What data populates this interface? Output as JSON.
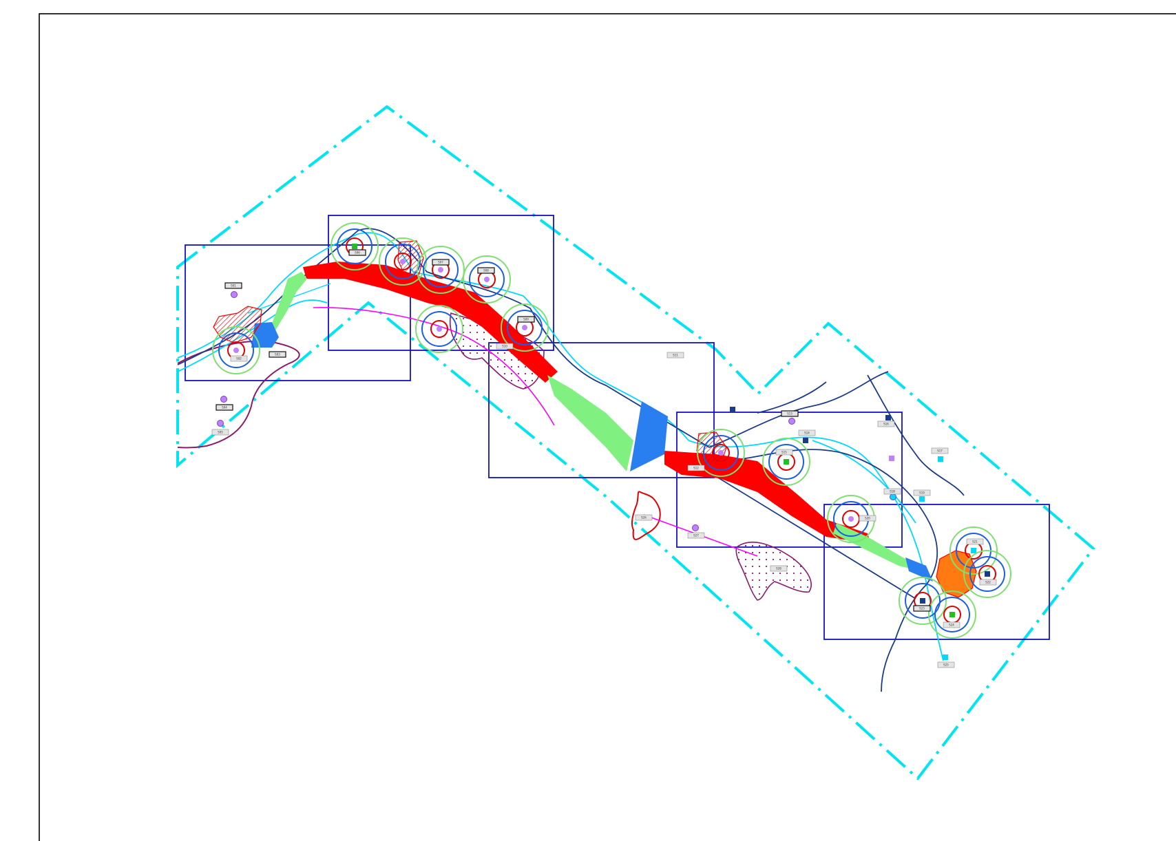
{
  "sheet": {
    "name": "map-sheet",
    "colors": {
      "background": "#ffffff",
      "border": "#000000",
      "boundary": "#00e5f0",
      "frames": "#1010c8",
      "high_hazard": "#ff0000",
      "medium_hazard": "#80f080",
      "low_hazard": "#2a7ff0",
      "ring_inner": "#e00000",
      "ring_middle": "#1a5fe0",
      "ring_outer": "#7ee070",
      "river": "#00d8ff",
      "road": "#1a3a8a",
      "pipeline": "#ff00ff",
      "flood_zone": "#8a1a6a",
      "node_fill": "#c080ff",
      "orange_zone": "#ff7a10"
    },
    "legend_items": [],
    "frames_count": 5,
    "boundary_style": "dash-dot"
  },
  "labels": {
    "small": [
      "NAM_01",
      "NAM_02",
      "NAM_03",
      "NAM_04",
      "NAM_05",
      "NAM_06",
      "NAM_07",
      "NAM_08",
      "NAM_09",
      "NAM_10",
      "NAM_11",
      "NAM_12",
      "NAM_13",
      "NAM_14",
      "NAM_15",
      "NAM_16",
      "NAM_17",
      "NAM_18",
      "NAM_19",
      "NAM_20",
      "NAM_21",
      "NAM_22",
      "NAM_23",
      "NAM_24"
    ],
    "tags": [
      "S01",
      "S02",
      "S03",
      "S04",
      "S05",
      "S06",
      "S07",
      "S08",
      "S09",
      "S10",
      "S11",
      "S12",
      "S13",
      "S14",
      "S15",
      "S16",
      "S17",
      "S18",
      "S19",
      "S20",
      "S21",
      "S22",
      "S23",
      "S24",
      "S25",
      "S26",
      "S27",
      "S28"
    ]
  }
}
